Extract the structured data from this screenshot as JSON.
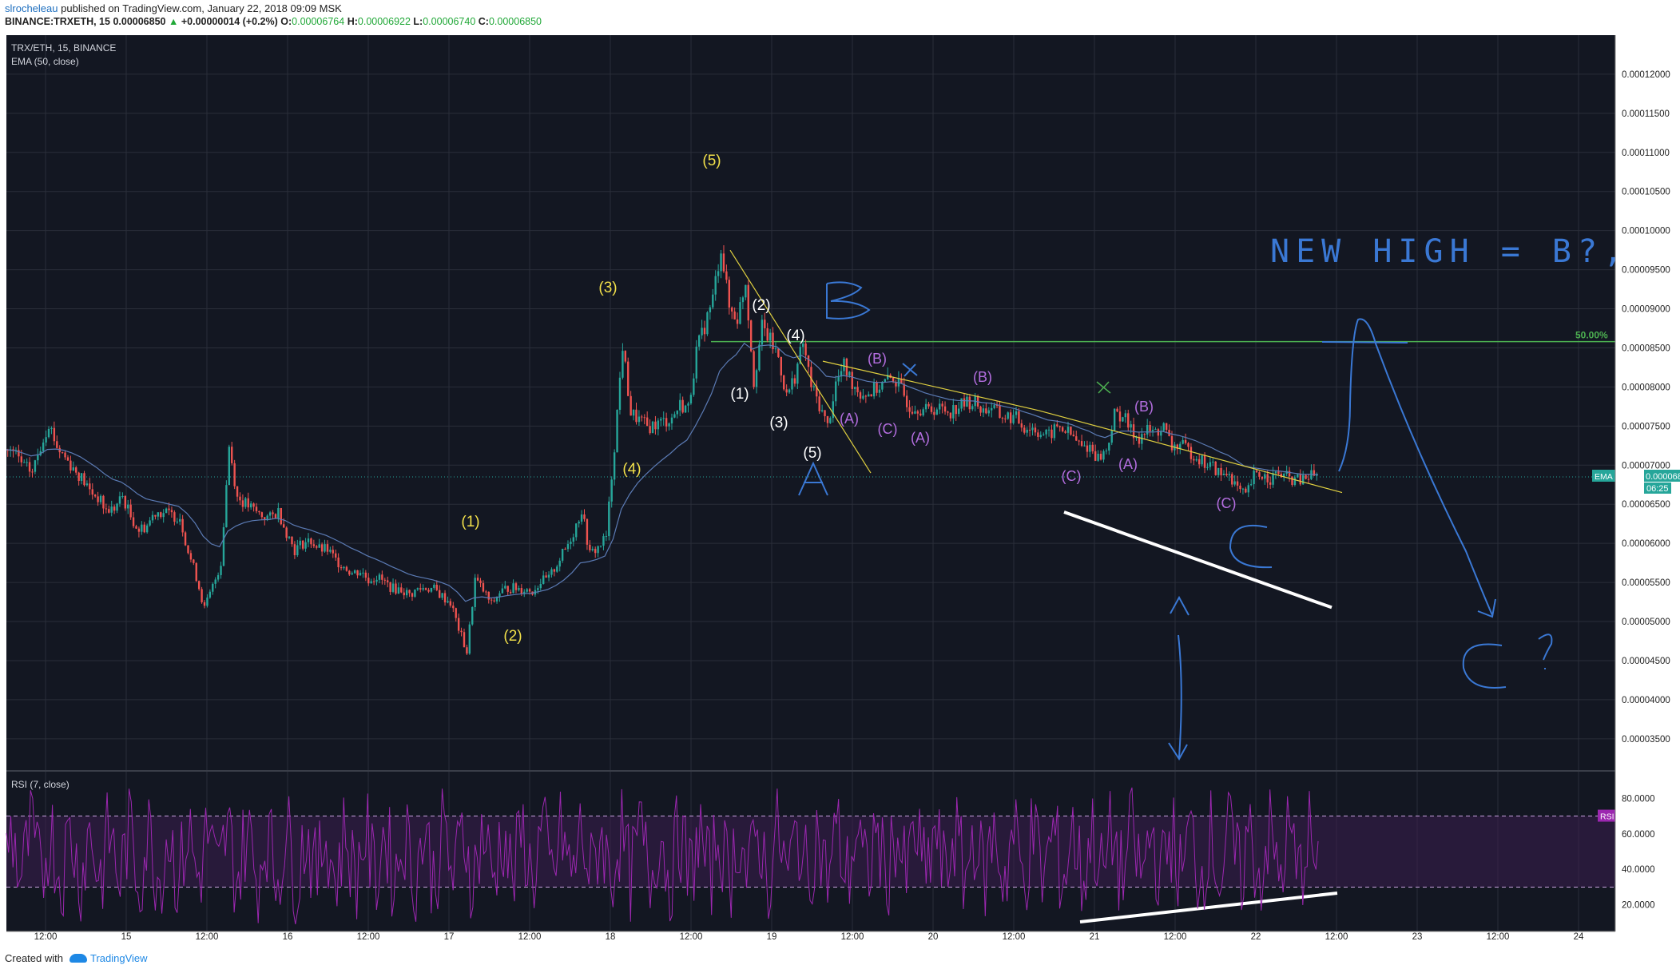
{
  "header": {
    "user": "slrocheleau",
    "published_text": "published on TradingView.com, January 22, 2018 09:09 MSK",
    "symbol": "BINANCE:TRXETH, 15",
    "last_price": "0.00006850",
    "arrow": "▲",
    "change": "+0.00000014 (+0.2%)",
    "o_label": "O:",
    "o_value": "0.00006764",
    "h_label": "H:",
    "h_value": "0.00006922",
    "l_label": "L:",
    "l_value": "0.00006740",
    "c_label": "C:",
    "c_value": "0.00006850"
  },
  "chart_data": {
    "type": "candlestick",
    "title": "TRX/ETH, 15, BINANCE",
    "indicator_label": "EMA (50, close)",
    "ylim": [
      3.1e-05,
      0.000125
    ],
    "y_ticks": [
      "0.00003500",
      "0.00004000",
      "0.00004500",
      "0.00005000",
      "0.00005500",
      "0.00006000",
      "0.00006500",
      "0.00007000",
      "0.00007500",
      "0.00008000",
      "0.00008500",
      "0.00009000",
      "0.00009500",
      "0.00010000",
      "0.00010500",
      "0.00011000",
      "0.00011500",
      "0.00012000"
    ],
    "x_tick_labels": [
      "12:00",
      "15",
      "12:00",
      "16",
      "12:00",
      "17",
      "12:00",
      "18",
      "12:00",
      "19",
      "12:00",
      "20",
      "12:00",
      "21",
      "12:00",
      "22",
      "12:00",
      "23",
      "12:00",
      "24"
    ],
    "price_path": [
      [
        0,
        7.2e-05
      ],
      [
        3,
        6.95e-05
      ],
      [
        5,
        7.55e-05
      ],
      [
        7,
        7.05e-05
      ],
      [
        9,
        6.85e-05
      ],
      [
        12,
        6.4e-05
      ],
      [
        14,
        6.6e-05
      ],
      [
        16,
        6.15e-05
      ],
      [
        18,
        6.4e-05
      ],
      [
        21,
        6.4e-05
      ],
      [
        22,
        5.85e-05
      ],
      [
        24,
        5.2e-05
      ],
      [
        26,
        5.7e-05
      ],
      [
        27,
        7.3e-05
      ],
      [
        28,
        6.6e-05
      ],
      [
        30,
        6.4e-05
      ],
      [
        33,
        6.35e-05
      ],
      [
        35,
        5.95e-05
      ],
      [
        37,
        6.05e-05
      ],
      [
        40,
        5.8e-05
      ],
      [
        43,
        5.6e-05
      ],
      [
        46,
        5.5e-05
      ],
      [
        49,
        5.35e-05
      ],
      [
        52,
        5.45e-05
      ],
      [
        54,
        5.25e-05
      ],
      [
        56,
        4.65e-05
      ],
      [
        57,
        5.55e-05
      ],
      [
        59,
        5.2e-05
      ],
      [
        61,
        5.45e-05
      ],
      [
        64,
        5.4e-05
      ],
      [
        66,
        5.55e-05
      ],
      [
        68,
        5.95e-05
      ],
      [
        70,
        6.4e-05
      ],
      [
        71,
        5.9e-05
      ],
      [
        73,
        6.05e-05
      ],
      [
        74,
        7.2e-05
      ],
      [
        75,
        8.45e-05
      ],
      [
        76,
        7.6e-05
      ],
      [
        78,
        7.45e-05
      ],
      [
        80,
        7.55e-05
      ],
      [
        82,
        7.8e-05
      ],
      [
        83,
        7.75e-05
      ],
      [
        84,
        8.5e-05
      ],
      [
        86,
        9.1e-05
      ],
      [
        87,
        9.75e-05
      ],
      [
        88,
        9.05e-05
      ],
      [
        89,
        8.8e-05
      ],
      [
        90,
        9.45e-05
      ],
      [
        91,
        8.1e-05
      ],
      [
        92,
        8.75e-05
      ],
      [
        93,
        8.6e-05
      ],
      [
        94,
        8.45e-05
      ],
      [
        95,
        7.8e-05
      ],
      [
        97,
        8.5e-05
      ],
      [
        98,
        8e-05
      ],
      [
        100,
        7.55e-05
      ],
      [
        101,
        8e-05
      ],
      [
        102,
        8.2e-05
      ],
      [
        104,
        8e-05
      ],
      [
        106,
        7.95e-05
      ],
      [
        108,
        8.1e-05
      ],
      [
        109,
        7.9e-05
      ],
      [
        111,
        7.7e-05
      ],
      [
        113,
        7.8e-05
      ],
      [
        116,
        7.75e-05
      ],
      [
        120,
        7.75e-05
      ],
      [
        124,
        7.55e-05
      ],
      [
        127,
        7.4e-05
      ],
      [
        129,
        7.5e-05
      ],
      [
        131,
        7.3e-05
      ],
      [
        133,
        7.15e-05
      ],
      [
        134,
        7.2e-05
      ],
      [
        135,
        7.7e-05
      ],
      [
        136,
        7.65e-05
      ],
      [
        137,
        7.45e-05
      ],
      [
        139,
        7.4e-05
      ],
      [
        141,
        7.45e-05
      ],
      [
        142,
        7.25e-05
      ],
      [
        144,
        7.15e-05
      ],
      [
        147,
        7e-05
      ],
      [
        149,
        6.85e-05
      ],
      [
        151,
        6.65e-05
      ],
      [
        152,
        6.9e-05
      ],
      [
        154,
        6.9e-05
      ],
      [
        156,
        6.85e-05
      ],
      [
        158,
        6.8e-05
      ],
      [
        160,
        6.85e-05
      ]
    ],
    "n_points": 161,
    "current_price": "0.00006850",
    "countdown": "06:25",
    "ema_tag": "EMA",
    "fib_label": "50.00%",
    "rsi": {
      "label": "RSI (7, close)",
      "tag": "RSI",
      "ylim": [
        5,
        95
      ],
      "y_ticks": [
        "20.0000",
        "40.0000",
        "60.0000",
        "80.0000"
      ],
      "bands": [
        30,
        70
      ]
    },
    "annotations": {
      "yellow": [
        "(1)",
        "(2)",
        "(3)",
        "(4)",
        "(5)"
      ],
      "white": [
        "(1)",
        "(2)",
        "(3)",
        "(4)",
        "(5)"
      ],
      "purple": [
        "(A)",
        "(C)",
        "(A)",
        "(B)",
        "(B)",
        "(C)",
        "(A)",
        "(B)",
        "(C)"
      ],
      "blue_letters": [
        "A",
        "B",
        "C"
      ],
      "handwriting": [
        "NEW HIGH = B?,",
        "C?"
      ]
    }
  },
  "footer": {
    "created_with": "Created with",
    "brand": "TradingView"
  }
}
